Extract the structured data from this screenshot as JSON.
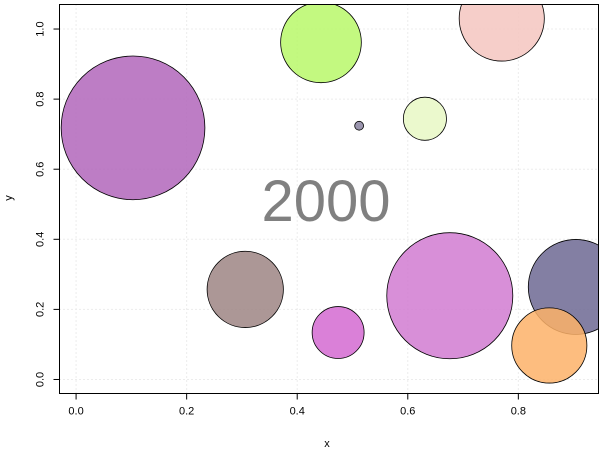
{
  "chart_data": {
    "type": "scatter",
    "title": "",
    "xlabel": "x",
    "ylabel": "y",
    "annotation": "2000",
    "xlim": [
      -0.03,
      0.945
    ],
    "ylim": [
      -0.04,
      1.07
    ],
    "x_ticks": [
      0.0,
      0.2,
      0.4,
      0.6,
      0.8
    ],
    "x_tick_labels": [
      "0.0",
      "0.2",
      "0.4",
      "0.6",
      "0.8"
    ],
    "y_ticks": [
      0.0,
      0.2,
      0.4,
      0.6,
      0.8,
      1.0
    ],
    "y_tick_labels": [
      "0.0",
      "0.2",
      "0.4",
      "0.6",
      "0.8",
      "1.0"
    ],
    "grid": true,
    "points": [
      {
        "x": 0.103,
        "y": 0.718,
        "size": 0.13,
        "color": "#b266bb"
      },
      {
        "x": 0.443,
        "y": 0.962,
        "size": 0.073,
        "color": "#b8f86a"
      },
      {
        "x": 0.77,
        "y": 1.03,
        "size": 0.077,
        "color": "#f4c6c0"
      },
      {
        "x": 0.512,
        "y": 0.724,
        "size": 0.008,
        "color": "#8a82a0"
      },
      {
        "x": 0.631,
        "y": 0.744,
        "size": 0.039,
        "color": "#e8f8c4"
      },
      {
        "x": 0.306,
        "y": 0.257,
        "size": 0.069,
        "color": "#9e8584"
      },
      {
        "x": 0.474,
        "y": 0.134,
        "size": 0.047,
        "color": "#d46ad1"
      },
      {
        "x": 0.676,
        "y": 0.239,
        "size": 0.114,
        "color": "#d17bd1"
      },
      {
        "x": 0.904,
        "y": 0.264,
        "size": 0.086,
        "color": "#6d6893"
      },
      {
        "x": 0.856,
        "y": 0.097,
        "size": 0.068,
        "color": "#fdb268"
      }
    ]
  }
}
